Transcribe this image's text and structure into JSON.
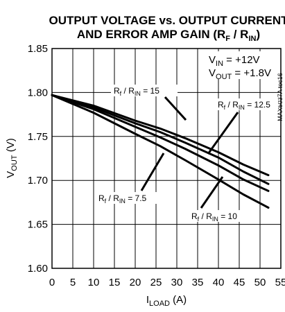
{
  "chart_data": {
    "type": "line",
    "title_line1": "OUTPUT VOLTAGE vs. OUTPUT CURRENT",
    "title_line2": {
      "text": "AND ERROR AMP GAIN (R",
      "sub1": "F",
      "mid": " / R",
      "sub2": "IN",
      "end": ")"
    },
    "xlabel": {
      "main": "I",
      "sub": "LOAD",
      "unit": " (A)"
    },
    "ylabel": {
      "main": "V",
      "sub": "OUT",
      "unit": " (V)"
    },
    "xlim": [
      0,
      55
    ],
    "ylim": [
      1.6,
      1.85
    ],
    "x_ticks": [
      "0",
      "5",
      "10",
      "15",
      "20",
      "25",
      "30",
      "35",
      "40",
      "45",
      "50",
      "55"
    ],
    "y_ticks": [
      "1.60",
      "1.65",
      "1.70",
      "1.75",
      "1.80",
      "1.85"
    ],
    "grid": true,
    "conditions": [
      {
        "main": "V",
        "sub": "IN",
        "rest": " = +12V"
      },
      {
        "main": "V",
        "sub": "OUT",
        "rest": " = +1.8V"
      }
    ],
    "side_code": "MAX5037A toc16",
    "series": [
      {
        "name": "Rf / RIN = 15",
        "label": {
          "main": "R",
          "sub1": "f",
          "mid": " / R",
          "sub2": "IN",
          "rest": " = 15"
        },
        "x": [
          0,
          10,
          20,
          26,
          32,
          40,
          46,
          52
        ],
        "y": [
          1.797,
          1.785,
          1.768,
          1.759,
          1.748,
          1.732,
          1.718,
          1.706
        ]
      },
      {
        "name": "Rf / RIN = 12.5",
        "label": {
          "main": "R",
          "sub1": "f",
          "mid": " / R",
          "sub2": "IN",
          "rest": " = 12.5"
        },
        "x": [
          0,
          10,
          20,
          26,
          32,
          40,
          46,
          52
        ],
        "y": [
          1.797,
          1.783,
          1.765,
          1.755,
          1.743,
          1.726,
          1.71,
          1.696
        ]
      },
      {
        "name": "Rf / RIN = 10",
        "label": {
          "main": "R",
          "sub1": "f",
          "mid": " / R",
          "sub2": "IN",
          "rest": " = 10"
        },
        "x": [
          0,
          10,
          20,
          26,
          32,
          40,
          46,
          52
        ],
        "y": [
          1.797,
          1.781,
          1.761,
          1.749,
          1.736,
          1.717,
          1.701,
          1.688
        ]
      },
      {
        "name": "Rf / RIN = 7.5",
        "label": {
          "main": "R",
          "sub1": "f",
          "mid": " / R",
          "sub2": "IN",
          "rest": " = 7.5"
        },
        "x": [
          0,
          10,
          20,
          26,
          32,
          40,
          46,
          52
        ],
        "y": [
          1.797,
          1.777,
          1.753,
          1.739,
          1.723,
          1.701,
          1.684,
          1.669
        ]
      }
    ]
  }
}
